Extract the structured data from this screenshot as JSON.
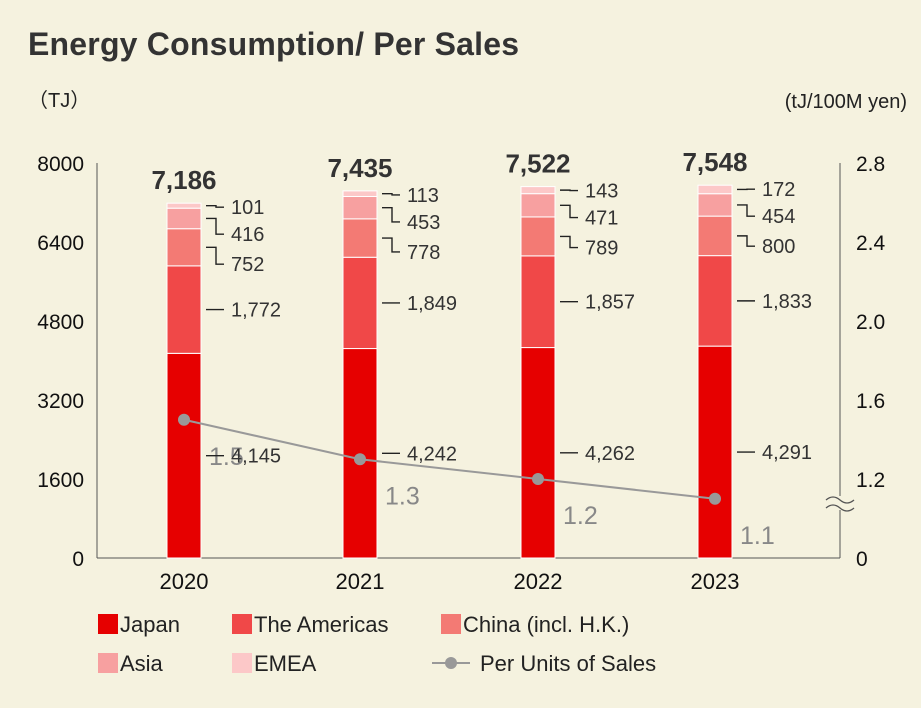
{
  "chart_data": {
    "type": "bar",
    "title": "Energy Consumption/ Per Sales",
    "ylabel_left": "（TJ）",
    "ylabel_right": "(tJ/100M yen)",
    "categories": [
      "2020",
      "2021",
      "2022",
      "2023"
    ],
    "totals": [
      "7,186",
      "7,435",
      "7,522",
      "7,548"
    ],
    "ylim_left": [
      0,
      8000
    ],
    "yticks_left": [
      "0",
      "1600",
      "3200",
      "4800",
      "6400",
      "8000"
    ],
    "ylim_right": [
      0.8,
      2.8
    ],
    "yticks_right": [
      "0",
      "1.2",
      "1.6",
      "2.0",
      "2.4",
      "2.8"
    ],
    "axis_break_right": true,
    "series": [
      {
        "name": "Japan",
        "color": "#e60000",
        "values": [
          4145,
          4242,
          4262,
          4291
        ],
        "labels": [
          "4,145",
          "4,242",
          "4,262",
          "4,291"
        ]
      },
      {
        "name": "The Americas",
        "color": "#f04848",
        "values": [
          1772,
          1849,
          1857,
          1833
        ],
        "labels": [
          "1,772",
          "1,849",
          "1,857",
          "1,833"
        ]
      },
      {
        "name": "China (incl. H.K.)",
        "color": "#f37a74",
        "values": [
          752,
          778,
          789,
          800
        ],
        "labels": [
          "752",
          "778",
          "789",
          "800"
        ]
      },
      {
        "name": "Asia",
        "color": "#f7a0a0",
        "values": [
          416,
          453,
          471,
          454
        ],
        "labels": [
          "416",
          "453",
          "471",
          "454"
        ]
      },
      {
        "name": "EMEA",
        "color": "#fcc8c8",
        "values": [
          101,
          113,
          143,
          172
        ],
        "labels": [
          "101",
          "113",
          "143",
          "172"
        ]
      }
    ],
    "line_series": {
      "name": "Per Units of Sales",
      "color": "#999999",
      "values": [
        1.5,
        1.3,
        1.2,
        1.1
      ],
      "labels": [
        "1.5",
        "1.3",
        "1.2",
        "1.1"
      ]
    },
    "grid": false,
    "legend_position": "bottom"
  }
}
